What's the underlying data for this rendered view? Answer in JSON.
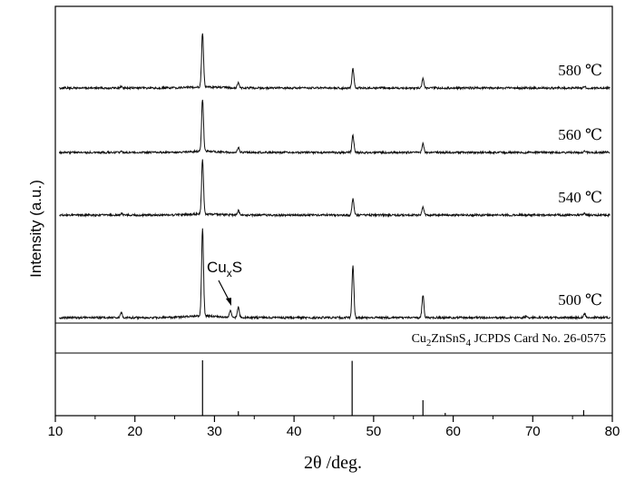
{
  "chart_data": {
    "type": "line",
    "xlabel": "2θ /deg.",
    "ylabel": "Intensity (a.u.)",
    "xlim": [
      10,
      80
    ],
    "xticks": [
      10,
      20,
      30,
      40,
      50,
      60,
      70,
      80
    ],
    "grid": false,
    "series": [
      {
        "name": "580 ℃",
        "peaks": [
          [
            18.3,
            0.03
          ],
          [
            28.5,
            1.0
          ],
          [
            33.0,
            0.1
          ],
          [
            47.4,
            0.36
          ],
          [
            56.2,
            0.17
          ],
          [
            76.5,
            0.03
          ]
        ]
      },
      {
        "name": "560 ℃",
        "peaks": [
          [
            18.3,
            0.03
          ],
          [
            28.5,
            1.0
          ],
          [
            33.0,
            0.09
          ],
          [
            47.4,
            0.33
          ],
          [
            56.2,
            0.17
          ],
          [
            76.5,
            0.03
          ]
        ]
      },
      {
        "name": "540 ℃",
        "peaks": [
          [
            18.3,
            0.03
          ],
          [
            28.5,
            1.0
          ],
          [
            33.0,
            0.08
          ],
          [
            47.4,
            0.3
          ],
          [
            56.2,
            0.15
          ],
          [
            76.5,
            0.03
          ]
        ]
      },
      {
        "name": "500 ℃",
        "peaks": [
          [
            18.3,
            0.06
          ],
          [
            28.5,
            1.0
          ],
          [
            32.0,
            0.08
          ],
          [
            33.0,
            0.12
          ],
          [
            47.4,
            0.6
          ],
          [
            56.2,
            0.26
          ],
          [
            69.2,
            0.02
          ],
          [
            76.5,
            0.05
          ]
        ]
      }
    ],
    "annotation": {
      "text_main": "Cu",
      "text_sub": "x",
      "text_tail": "S",
      "target_x": 32.0
    },
    "reference": {
      "label_parts": [
        "Cu",
        "2",
        "ZnSnS",
        "4",
        "  JCPDS Card No. 26-0575"
      ],
      "lines": [
        [
          28.5,
          1.0
        ],
        [
          33.0,
          0.08
        ],
        [
          47.3,
          0.99
        ],
        [
          56.2,
          0.28
        ],
        [
          59.0,
          0.05
        ],
        [
          76.4,
          0.1
        ]
      ]
    }
  }
}
